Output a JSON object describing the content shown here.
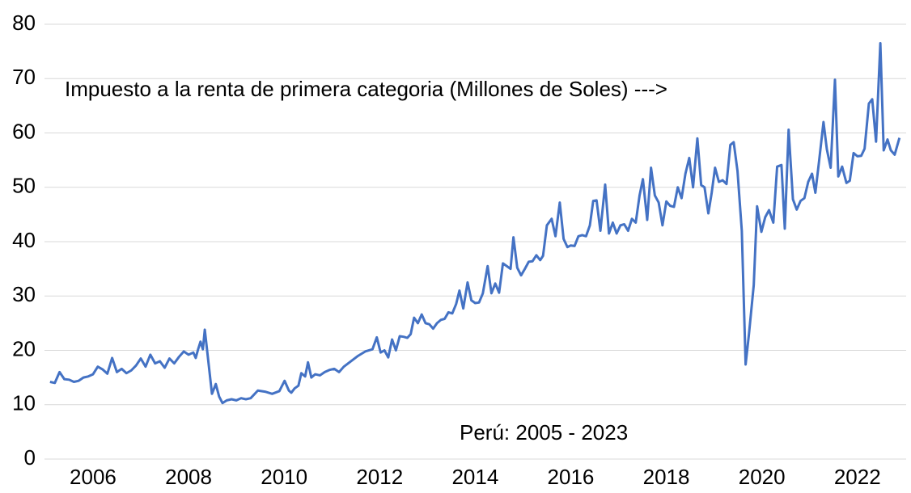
{
  "chart_data": {
    "type": "line",
    "annotations": [
      "Impuesto a la renta de primera categoria  (Millones de Soles) --->",
      "Perú: 2005 - 2023"
    ],
    "color": "#4472c4",
    "grid": true,
    "xlim": [
      2004.9,
      2023.02
    ],
    "xticks": [
      2006,
      2008,
      2010,
      2012,
      2014,
      2016,
      2018,
      2020,
      2022
    ],
    "ylim": [
      0,
      80
    ],
    "yticks": [
      0,
      10,
      20,
      30,
      40,
      50,
      60,
      70,
      80
    ],
    "x": [
      2005.1,
      2005.2,
      2005.3,
      2005.4,
      2005.5,
      2005.6,
      2005.7,
      2005.8,
      2005.9,
      2006.0,
      2006.1,
      2006.2,
      2006.3,
      2006.4,
      2006.5,
      2006.6,
      2006.7,
      2006.8,
      2006.9,
      2007.0,
      2007.1,
      2007.2,
      2007.3,
      2007.4,
      2007.5,
      2007.6,
      2007.7,
      2007.8,
      2007.9,
      2008.0,
      2008.1,
      2008.15,
      2008.2,
      2008.25,
      2008.3,
      2008.34,
      2008.49,
      2008.57,
      2008.64,
      2008.71,
      2008.8,
      2008.9,
      2009.0,
      2009.1,
      2009.2,
      2009.3,
      2009.45,
      2009.6,
      2009.75,
      2009.9,
      2010.01,
      2010.1,
      2010.15,
      2010.22,
      2010.3,
      2010.36,
      2010.44,
      2010.5,
      2010.57,
      2010.65,
      2010.75,
      2010.85,
      2010.95,
      2011.05,
      2011.15,
      2011.25,
      2011.4,
      2011.55,
      2011.7,
      2011.85,
      2011.94,
      2012.02,
      2012.1,
      2012.18,
      2012.26,
      2012.34,
      2012.42,
      2012.5,
      2012.58,
      2012.65,
      2012.72,
      2012.8,
      2012.88,
      2012.96,
      2013.04,
      2013.12,
      2013.2,
      2013.28,
      2013.36,
      2013.44,
      2013.52,
      2013.6,
      2013.67,
      2013.75,
      2013.84,
      2013.92,
      2014.0,
      2014.08,
      2014.16,
      2014.26,
      2014.34,
      2014.42,
      2014.5,
      2014.58,
      2014.66,
      2014.74,
      2014.8,
      2014.88,
      2014.96,
      2015.04,
      2015.12,
      2015.2,
      2015.28,
      2015.36,
      2015.42,
      2015.5,
      2015.6,
      2015.68,
      2015.77,
      2015.85,
      2015.93,
      2016.0,
      2016.08,
      2016.16,
      2016.24,
      2016.32,
      2016.4,
      2016.47,
      2016.54,
      2016.62,
      2016.72,
      2016.8,
      2016.88,
      2016.96,
      2017.04,
      2017.12,
      2017.2,
      2017.28,
      2017.36,
      2017.44,
      2017.51,
      2017.6,
      2017.68,
      2017.76,
      2017.84,
      2017.92,
      2018.0,
      2018.08,
      2018.16,
      2018.24,
      2018.32,
      2018.4,
      2018.48,
      2018.56,
      2018.65,
      2018.73,
      2018.8,
      2018.88,
      2018.95,
      2019.02,
      2019.1,
      2019.18,
      2019.26,
      2019.34,
      2019.41,
      2019.49,
      2019.58,
      2019.66,
      2019.73,
      2019.83,
      2019.9,
      2019.99,
      2020.07,
      2020.15,
      2020.24,
      2020.32,
      2020.41,
      2020.48,
      2020.56,
      2020.65,
      2020.73,
      2020.81,
      2020.89,
      2020.97,
      2021.05,
      2021.12,
      2021.2,
      2021.29,
      2021.36,
      2021.44,
      2021.53,
      2021.6,
      2021.68,
      2021.77,
      2021.84,
      2021.92,
      2022.0,
      2022.08,
      2022.15,
      2022.24,
      2022.31,
      2022.39,
      2022.48,
      2022.55,
      2022.63,
      2022.7,
      2022.78,
      2022.88
    ],
    "values": [
      14.2,
      14.0,
      16.0,
      14.7,
      14.6,
      14.2,
      14.4,
      15.0,
      15.2,
      15.6,
      17.0,
      16.5,
      15.7,
      18.6,
      16.0,
      16.6,
      15.8,
      16.3,
      17.2,
      18.5,
      17.0,
      19.2,
      17.6,
      18.0,
      16.8,
      18.5,
      17.6,
      18.8,
      19.8,
      19.2,
      19.6,
      18.6,
      20.2,
      21.6,
      20.2,
      23.8,
      12.0,
      13.8,
      11.5,
      10.3,
      10.8,
      11.0,
      10.8,
      11.2,
      11.0,
      11.2,
      12.6,
      12.4,
      12.0,
      12.5,
      14.4,
      12.6,
      12.2,
      13.0,
      13.5,
      15.8,
      15.2,
      17.8,
      15.0,
      15.6,
      15.4,
      16.0,
      16.4,
      16.6,
      16.0,
      17.0,
      18.0,
      19.0,
      19.8,
      20.2,
      22.4,
      19.6,
      20.0,
      18.7,
      22.0,
      20.0,
      22.6,
      22.5,
      22.3,
      23.0,
      26.0,
      25.0,
      26.6,
      25.0,
      24.8,
      24.0,
      25.0,
      25.6,
      25.8,
      27.0,
      26.8,
      28.5,
      31.0,
      27.7,
      32.5,
      29.2,
      28.7,
      28.8,
      30.5,
      35.5,
      30.5,
      32.3,
      30.6,
      36.0,
      35.5,
      35.0,
      40.8,
      35.2,
      33.8,
      35.0,
      36.3,
      36.4,
      37.5,
      36.6,
      37.4,
      43.0,
      44.2,
      41.0,
      47.2,
      40.5,
      39.0,
      39.3,
      39.2,
      41.0,
      41.2,
      41.0,
      43.0,
      47.5,
      47.6,
      42.0,
      50.5,
      41.5,
      43.5,
      41.5,
      43.0,
      43.2,
      42.0,
      44.2,
      43.5,
      48.5,
      51.5,
      44.0,
      53.6,
      48.5,
      47.2,
      43.0,
      47.4,
      46.6,
      46.4,
      50.0,
      48.0,
      52.5,
      55.4,
      50.0,
      59.0,
      50.4,
      50.0,
      45.2,
      49.0,
      53.6,
      51.0,
      51.3,
      50.6,
      57.8,
      58.3,
      53.0,
      42.0,
      17.4,
      23.0,
      32.0,
      46.5,
      41.8,
      44.5,
      45.8,
      43.5,
      53.8,
      54.1,
      42.4,
      60.6,
      47.8,
      45.9,
      47.5,
      48.0,
      51.0,
      52.5,
      49.0,
      55.0,
      62.0,
      57.0,
      53.6,
      69.8,
      52.0,
      53.8,
      50.8,
      51.2,
      56.3,
      55.7,
      55.8,
      57.1,
      65.4,
      66.2,
      58.4,
      76.5,
      56.8,
      58.8,
      56.8,
      56.0,
      59.1
    ]
  }
}
